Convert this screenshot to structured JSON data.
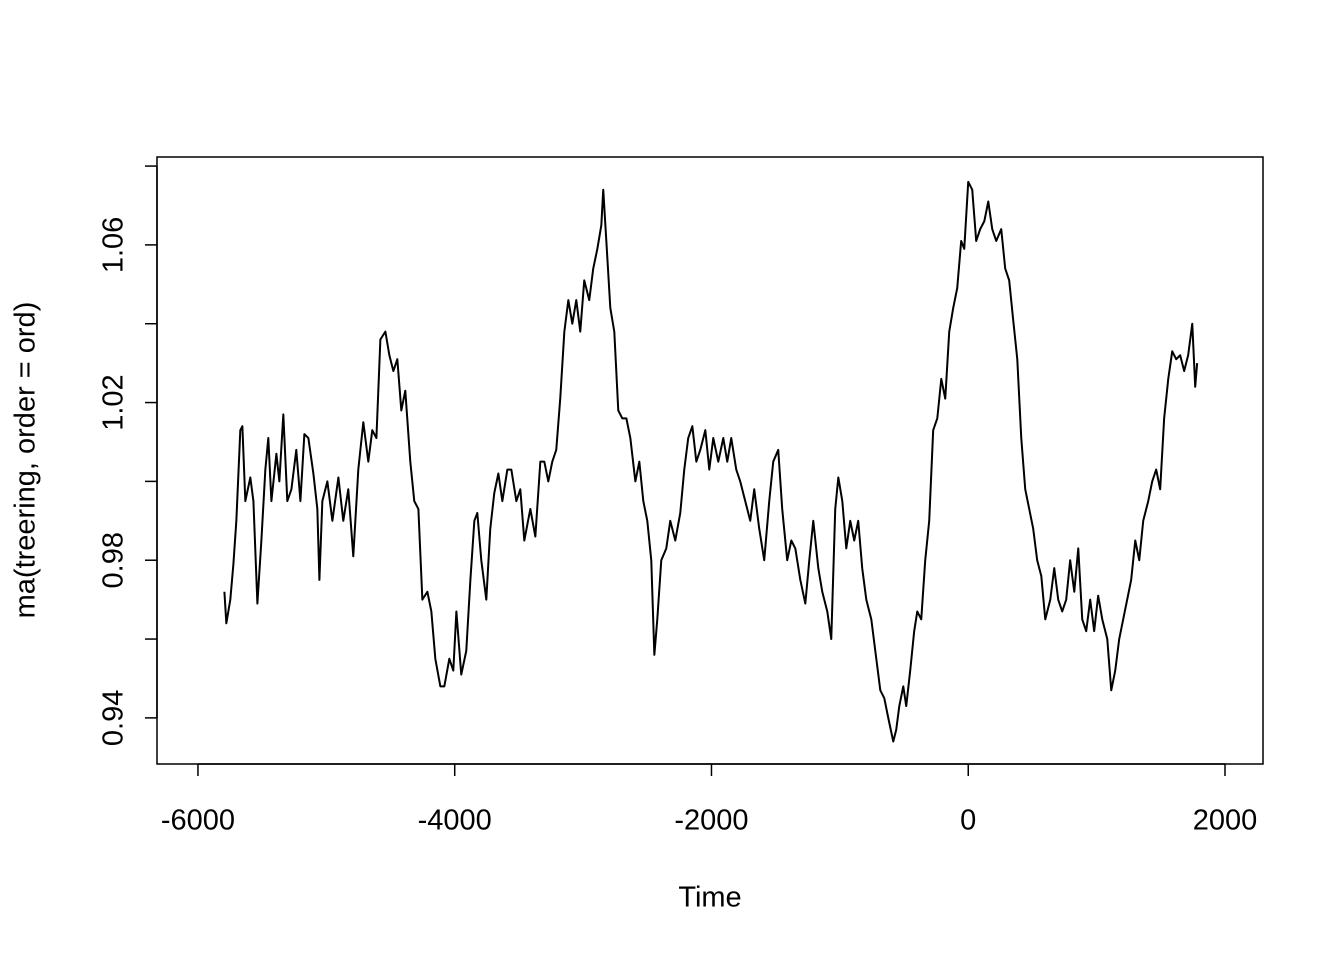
{
  "chart_data": {
    "type": "line",
    "xlabel": "Time",
    "ylabel": "ma(treering, order = ord)",
    "color": "#000000",
    "xlim": [
      -6319,
      2296
    ],
    "ylim": [
      0.9283,
      1.0823
    ],
    "xticks": [
      -6000,
      -4000,
      -2000,
      0,
      2000
    ],
    "yticks": [
      0.94,
      0.98,
      1.02,
      1.06
    ],
    "yticks_unlabeled": [
      0.96,
      1.0,
      1.04,
      1.08
    ],
    "x": [
      -5794,
      -5779,
      -5748,
      -5724,
      -5701,
      -5670,
      -5654,
      -5631,
      -5592,
      -5568,
      -5537,
      -5506,
      -5475,
      -5452,
      -5428,
      -5389,
      -5366,
      -5335,
      -5304,
      -5272,
      -5234,
      -5202,
      -5171,
      -5140,
      -5101,
      -5070,
      -5054,
      -5031,
      -4992,
      -4953,
      -4906,
      -4868,
      -4829,
      -4790,
      -4751,
      -4712,
      -4673,
      -4642,
      -4610,
      -4579,
      -4540,
      -4509,
      -4478,
      -4447,
      -4416,
      -4385,
      -4346,
      -4315,
      -4283,
      -4252,
      -4213,
      -4182,
      -4151,
      -4112,
      -4081,
      -4042,
      -4011,
      -3987,
      -3949,
      -3910,
      -3878,
      -3847,
      -3824,
      -3793,
      -3754,
      -3723,
      -3692,
      -3660,
      -3629,
      -3590,
      -3559,
      -3520,
      -3489,
      -3458,
      -3411,
      -3372,
      -3333,
      -3302,
      -3271,
      -3240,
      -3209,
      -3178,
      -3146,
      -3115,
      -3084,
      -3053,
      -3022,
      -2991,
      -2952,
      -2921,
      -2889,
      -2858,
      -2843,
      -2819,
      -2788,
      -2757,
      -2726,
      -2695,
      -2663,
      -2632,
      -2593,
      -2562,
      -2531,
      -2500,
      -2469,
      -2445,
      -2422,
      -2391,
      -2352,
      -2321,
      -2282,
      -2243,
      -2212,
      -2181,
      -2149,
      -2118,
      -2087,
      -2048,
      -2017,
      -1986,
      -1947,
      -1908,
      -1877,
      -1846,
      -1807,
      -1776,
      -1737,
      -1698,
      -1667,
      -1628,
      -1589,
      -1550,
      -1519,
      -1480,
      -1449,
      -1410,
      -1378,
      -1347,
      -1308,
      -1269,
      -1238,
      -1207,
      -1168,
      -1137,
      -1098,
      -1067,
      -1036,
      -1012,
      -981,
      -950,
      -919,
      -888,
      -857,
      -826,
      -794,
      -755,
      -724,
      -685,
      -654,
      -623,
      -584,
      -561,
      -537,
      -506,
      -483,
      -452,
      -421,
      -397,
      -366,
      -335,
      -304,
      -273,
      -241,
      -210,
      -179,
      -148,
      -117,
      -86,
      -55,
      -31,
      0,
      31,
      62,
      93,
      125,
      156,
      187,
      218,
      257,
      288,
      319,
      350,
      382,
      413,
      444,
      475,
      506,
      537,
      569,
      600,
      639,
      670,
      701,
      732,
      763,
      794,
      826,
      857,
      888,
      919,
      950,
      981,
      1012,
      1044,
      1083,
      1114,
      1145,
      1176,
      1207,
      1238,
      1269,
      1301,
      1332,
      1363,
      1402,
      1433,
      1464,
      1495,
      1526,
      1558,
      1589,
      1620,
      1651,
      1682,
      1713,
      1745,
      1768,
      1783
    ],
    "values": [
      0.972,
      0.964,
      0.97,
      0.979,
      0.99,
      1.013,
      1.014,
      0.995,
      1.001,
      0.995,
      0.969,
      0.985,
      1.003,
      1.011,
      0.995,
      1.007,
      1.0,
      1.017,
      0.995,
      0.998,
      1.008,
      0.995,
      1.012,
      1.011,
      1.002,
      0.993,
      0.975,
      0.995,
      1.0,
      0.99,
      1.001,
      0.99,
      0.998,
      0.981,
      1.003,
      1.015,
      1.005,
      1.013,
      1.011,
      1.036,
      1.038,
      1.032,
      1.028,
      1.031,
      1.018,
      1.023,
      1.005,
      0.995,
      0.993,
      0.97,
      0.972,
      0.967,
      0.955,
      0.948,
      0.948,
      0.955,
      0.952,
      0.967,
      0.951,
      0.957,
      0.975,
      0.99,
      0.992,
      0.98,
      0.97,
      0.988,
      0.997,
      1.002,
      0.995,
      1.003,
      1.003,
      0.995,
      0.998,
      0.985,
      0.993,
      0.986,
      1.005,
      1.005,
      1.0,
      1.005,
      1.008,
      1.021,
      1.038,
      1.046,
      1.04,
      1.046,
      1.038,
      1.051,
      1.046,
      1.054,
      1.059,
      1.065,
      1.074,
      1.061,
      1.044,
      1.038,
      1.018,
      1.016,
      1.016,
      1.011,
      1.0,
      1.005,
      0.995,
      0.99,
      0.98,
      0.956,
      0.965,
      0.98,
      0.983,
      0.99,
      0.985,
      0.992,
      1.003,
      1.011,
      1.014,
      1.005,
      1.008,
      1.013,
      1.003,
      1.011,
      1.005,
      1.011,
      1.005,
      1.011,
      1.003,
      1.0,
      0.995,
      0.99,
      0.998,
      0.988,
      0.98,
      0.995,
      1.005,
      1.008,
      0.993,
      0.98,
      0.985,
      0.983,
      0.975,
      0.969,
      0.98,
      0.99,
      0.978,
      0.972,
      0.967,
      0.96,
      0.993,
      1.001,
      0.995,
      0.983,
      0.99,
      0.985,
      0.99,
      0.978,
      0.97,
      0.965,
      0.957,
      0.947,
      0.945,
      0.94,
      0.934,
      0.937,
      0.943,
      0.948,
      0.943,
      0.952,
      0.962,
      0.967,
      0.965,
      0.98,
      0.99,
      1.013,
      1.016,
      1.026,
      1.021,
      1.038,
      1.044,
      1.049,
      1.061,
      1.059,
      1.076,
      1.074,
      1.061,
      1.064,
      1.066,
      1.071,
      1.064,
      1.061,
      1.064,
      1.054,
      1.051,
      1.041,
      1.031,
      1.011,
      0.998,
      0.993,
      0.988,
      0.98,
      0.976,
      0.965,
      0.97,
      0.978,
      0.97,
      0.967,
      0.97,
      0.98,
      0.972,
      0.983,
      0.965,
      0.962,
      0.97,
      0.962,
      0.971,
      0.965,
      0.96,
      0.947,
      0.952,
      0.96,
      0.965,
      0.97,
      0.975,
      0.985,
      0.98,
      0.99,
      0.995,
      1.0,
      1.003,
      0.998,
      1.016,
      1.026,
      1.033,
      1.031,
      1.032,
      1.028,
      1.032,
      1.04,
      1.024,
      1.03
    ]
  }
}
